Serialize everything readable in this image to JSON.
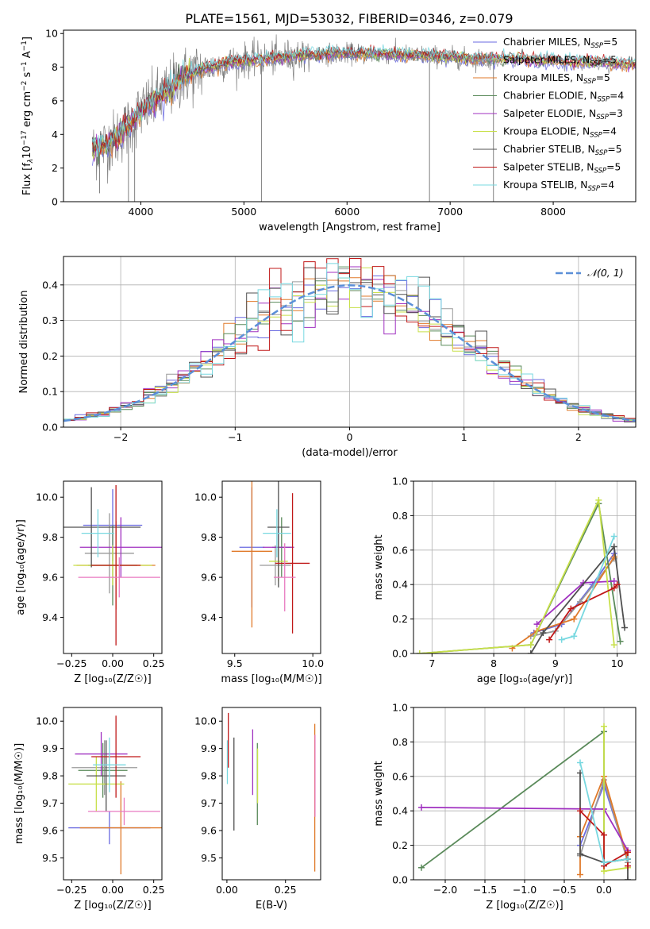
{
  "title": "PLATE=1561, MJD=53032, FIBERID=0346, z=0.079",
  "colors": {
    "chabrier_miles": "#6a6ae0",
    "salpeter_miles": "#9a9a9a",
    "kroupa_miles": "#e07a2a",
    "chabrier_elodie": "#5a8a5a",
    "salpeter_elodie": "#a030c0",
    "kroupa_elodie": "#c8e04a",
    "chabrier_stelib": "#505050",
    "salpeter_stelib": "#c01818",
    "kroupa_stelib": "#78d8e0",
    "normal": "#5b8fd8",
    "pink": "#e87ac0",
    "grid": "#b0b0b0"
  },
  "chart_data": [
    {
      "type": "line",
      "panel": "spectrum",
      "xlabel": "wavelength [Angstrom, rest frame]",
      "ylabel_parts": [
        "Flux [f",
        "λ",
        "10",
        "−17",
        " erg cm",
        "−2",
        " s",
        "−1",
        " A",
        "−1",
        "]"
      ],
      "xlim": [
        3250,
        8800
      ],
      "ylim": [
        0,
        10.2
      ],
      "xticks": [
        4000,
        5000,
        6000,
        7000,
        8000
      ],
      "yticks": [
        0,
        2,
        4,
        6,
        8,
        10
      ],
      "legend": [
        {
          "label": "Chabrier MILES, N",
          "n": "5",
          "color": "#6a6ae0"
        },
        {
          "label": "Salpeter MILES, N",
          "n": "5",
          "color": "#9a9a9a"
        },
        {
          "label": "Kroupa MILES, N",
          "n": "5",
          "color": "#e07a2a"
        },
        {
          "label": "Chabrier ELODIE, N",
          "n": "4",
          "color": "#5a8a5a"
        },
        {
          "label": "Salpeter ELODIE, N",
          "n": "3",
          "color": "#a030c0"
        },
        {
          "label": "Kroupa ELODIE, N",
          "n": "4",
          "color": "#c8e04a"
        },
        {
          "label": "Chabrier STELIB, N",
          "n": "5",
          "color": "#505050"
        },
        {
          "label": "Salpeter STELIB, N",
          "n": "5",
          "color": "#c01818"
        },
        {
          "label": "Kroupa STELIB, N",
          "n": "4",
          "color": "#78d8e0"
        }
      ],
      "legend_sub": "SSP",
      "continuum": {
        "x": [
          3530,
          3600,
          3700,
          3800,
          3900,
          4000,
          4100,
          4200,
          4300,
          4400,
          4500,
          4600,
          4700,
          4800,
          4900,
          5000,
          5200,
          5400,
          5600,
          5800,
          6000,
          6200,
          6400,
          6600,
          6800,
          7000,
          7200,
          7400,
          7600,
          7800,
          8000,
          8200,
          8400,
          8600,
          8800
        ],
        "y": [
          3.0,
          3.2,
          3.5,
          4.0,
          4.6,
          5.4,
          5.8,
          6.3,
          6.8,
          7.4,
          7.6,
          7.9,
          8.0,
          8.2,
          8.3,
          8.4,
          8.5,
          8.6,
          8.7,
          8.8,
          8.8,
          8.8,
          8.8,
          8.7,
          8.7,
          8.6,
          8.5,
          8.5,
          8.5,
          8.4,
          8.4,
          8.3,
          8.3,
          8.2,
          8.2
        ]
      },
      "data_range": [
        3530,
        7430
      ],
      "models_range": [
        3530,
        8800
      ]
    },
    {
      "type": "bar",
      "panel": "residual histogram",
      "xlabel": "(data-model)/error",
      "ylabel": "Normed distribution",
      "xlim": [
        -2.5,
        2.5
      ],
      "ylim": [
        0,
        0.48
      ],
      "xticks": [
        -2,
        -1,
        0,
        1,
        2
      ],
      "xticklabels": [
        "−2",
        "−1",
        "0",
        "1",
        "2"
      ],
      "yticks": [
        0.0,
        0.1,
        0.2,
        0.3,
        0.4
      ],
      "yticklabels": [
        "0.0",
        "0.1",
        "0.2",
        "0.3",
        "0.4"
      ],
      "legend_label": "𝒩(0, 1)",
      "bin_width": 0.1,
      "normal_curve": {
        "mean": 0,
        "sigma": 1
      }
    },
    {
      "type": "scatter",
      "panel": "age vs Z",
      "xlabel": "Z [log₁₀(Z/Z☉)]",
      "ylabel": "age  [log₁₀(age/yr)]",
      "xlim": [
        -0.3,
        0.3
      ],
      "ylim": [
        9.22,
        10.08
      ],
      "xticks": [
        -0.25,
        0.0,
        0.25
      ],
      "xticklabels": [
        "−0.25",
        "0.00",
        "0.25"
      ],
      "yticks": [
        9.4,
        9.6,
        9.8,
        10.0
      ],
      "yticklabels": [
        "9.4",
        "9.6",
        "9.8",
        "10.0"
      ],
      "points": [
        {
          "x": 0.0,
          "y": 9.86,
          "xerr": 0.18,
          "yerr": 0.18,
          "color": "#6a6ae0"
        },
        {
          "x": -0.02,
          "y": 9.72,
          "xerr": 0.15,
          "yerr": 0.2,
          "color": "#9a9a9a"
        },
        {
          "x": 0.02,
          "y": 9.66,
          "xerr": 0.24,
          "yerr": 0.22,
          "color": "#e07a2a"
        },
        {
          "x": 0.0,
          "y": 9.66,
          "xerr": 0.15,
          "yerr": 0.2,
          "color": "#5a8a5a"
        },
        {
          "x": 0.05,
          "y": 9.75,
          "xerr": 0.25,
          "yerr": 0.15,
          "color": "#a030c0"
        },
        {
          "x": 0.0,
          "y": 9.66,
          "xerr": 0.24,
          "yerr": 0.1,
          "color": "#c8e04a"
        },
        {
          "x": -0.13,
          "y": 9.85,
          "xerr": 0.3,
          "yerr": 0.2,
          "color": "#505050"
        },
        {
          "x": 0.02,
          "y": 9.66,
          "xerr": 0.15,
          "yerr": 0.4,
          "color": "#c01818"
        },
        {
          "x": -0.09,
          "y": 9.82,
          "xerr": 0.1,
          "yerr": 0.12,
          "color": "#78d8e0"
        },
        {
          "x": 0.04,
          "y": 9.6,
          "xerr": 0.25,
          "yerr": 0.1,
          "color": "#e87ac0"
        }
      ]
    },
    {
      "type": "scatter",
      "panel": "age vs mass",
      "xlabel": "mass [log₁₀(M/M☉)]",
      "ylabel": "",
      "xlim": [
        9.42,
        10.05
      ],
      "ylim": [
        9.22,
        10.08
      ],
      "xticks": [
        9.5,
        10.0
      ],
      "xticklabels": [
        "9.5",
        "10.0"
      ],
      "yticks": [
        9.4,
        9.6,
        9.8,
        10.0
      ],
      "yticklabels": [
        "9.4",
        "9.6",
        "9.8",
        "10.0"
      ],
      "points": [
        {
          "x": 9.61,
          "y": 9.75,
          "xerr": 0.08,
          "yerr": 0.3,
          "color": "#6a6ae0"
        },
        {
          "x": 9.76,
          "y": 9.66,
          "xerr": 0.1,
          "yerr": 0.1,
          "color": "#9a9a9a"
        },
        {
          "x": 9.61,
          "y": 9.73,
          "xerr": 0.13,
          "yerr": 0.38,
          "color": "#e07a2a"
        },
        {
          "x": 9.8,
          "y": 9.75,
          "xerr": 0.06,
          "yerr": 0.15,
          "color": "#5a8a5a"
        },
        {
          "x": 9.78,
          "y": 9.75,
          "xerr": 0.1,
          "yerr": 0.1,
          "color": "#a030c0"
        },
        {
          "x": 9.78,
          "y": 9.68,
          "xerr": 0.06,
          "yerr": 0.1,
          "color": "#c8e04a"
        },
        {
          "x": 9.78,
          "y": 9.85,
          "xerr": 0.07,
          "yerr": 0.3,
          "color": "#505050"
        },
        {
          "x": 9.87,
          "y": 9.67,
          "xerr": 0.11,
          "yerr": 0.35,
          "color": "#c01818"
        },
        {
          "x": 9.77,
          "y": 9.82,
          "xerr": 0.09,
          "yerr": 0.12,
          "color": "#78d8e0"
        },
        {
          "x": 9.82,
          "y": 9.6,
          "xerr": 0.07,
          "yerr": 0.17,
          "color": "#e87ac0"
        }
      ]
    },
    {
      "type": "line",
      "panel": "mass weight vs age",
      "xlabel": "age  [log₁₀(age/yr)]",
      "ylabel": "mass weight",
      "xlim": [
        6.7,
        10.3
      ],
      "ylim": [
        0,
        1.0
      ],
      "xticks": [
        7,
        8,
        9,
        10
      ],
      "yticks": [
        0.0,
        0.2,
        0.4,
        0.6,
        0.8,
        1.0
      ],
      "yticklabels": [
        "0.0",
        "0.2",
        "0.4",
        "0.6",
        "0.8",
        "1.0"
      ],
      "series": [
        {
          "color": "#6a6ae0",
          "x": [
            8.65,
            9.1,
            9.6,
            9.95
          ],
          "y": [
            0.12,
            0.17,
            0.4,
            0.58
          ]
        },
        {
          "color": "#9a9a9a",
          "x": [
            8.6,
            9.0,
            9.4,
            9.95
          ],
          "y": [
            0.1,
            0.13,
            0.3,
            0.55
          ]
        },
        {
          "color": "#e07a2a",
          "x": [
            8.3,
            8.7,
            9.3,
            9.95
          ],
          "y": [
            0.03,
            0.13,
            0.2,
            0.56
          ]
        },
        {
          "color": "#5a8a5a",
          "x": [
            6.8,
            8.6,
            9.7,
            10.05
          ],
          "y": [
            0.0,
            0.05,
            0.87,
            0.07
          ]
        },
        {
          "color": "#a030c0",
          "x": [
            8.7,
            9.45,
            9.95
          ],
          "y": [
            0.17,
            0.41,
            0.42
          ]
        },
        {
          "color": "#c8e04a",
          "x": [
            6.8,
            8.6,
            9.7,
            9.95
          ],
          "y": [
            0.0,
            0.05,
            0.89,
            0.05
          ]
        },
        {
          "color": "#505050",
          "x": [
            8.6,
            8.8,
            9.95,
            10.12
          ],
          "y": [
            0.0,
            0.12,
            0.62,
            0.15
          ]
        },
        {
          "color": "#c01818",
          "x": [
            8.9,
            9.25,
            9.95,
            10.0
          ],
          "y": [
            0.08,
            0.26,
            0.38,
            0.4
          ]
        },
        {
          "color": "#78d8e0",
          "x": [
            9.1,
            9.3,
            9.95
          ],
          "y": [
            0.08,
            0.1,
            0.68
          ]
        }
      ]
    },
    {
      "type": "scatter",
      "panel": "mass vs Z",
      "xlabel": "Z [log₁₀(Z/Z☉)]",
      "ylabel": "mass [log₁₀(M/M☉)]",
      "xlim": [
        -0.3,
        0.3
      ],
      "ylim": [
        9.42,
        10.05
      ],
      "xticks": [
        -0.25,
        0.0,
        0.25
      ],
      "xticklabels": [
        "−0.25",
        "0.00",
        "0.25"
      ],
      "yticks": [
        9.5,
        9.6,
        9.7,
        9.8,
        9.9,
        10.0
      ],
      "yticklabels": [
        "9.5",
        "9.6",
        "9.7",
        "9.8",
        "9.9",
        "10.0"
      ],
      "points": [
        {
          "x": -0.02,
          "y": 9.61,
          "xerr": 0.25,
          "yerr": 0.06,
          "color": "#6a6ae0"
        },
        {
          "x": -0.05,
          "y": 9.83,
          "xerr": 0.2,
          "yerr": 0.1,
          "color": "#9a9a9a"
        },
        {
          "x": 0.05,
          "y": 9.61,
          "xerr": 0.25,
          "yerr": 0.17,
          "color": "#e07a2a"
        },
        {
          "x": -0.06,
          "y": 9.82,
          "xerr": 0.15,
          "yerr": 0.1,
          "color": "#5a8a5a"
        },
        {
          "x": -0.07,
          "y": 9.88,
          "xerr": 0.16,
          "yerr": 0.08,
          "color": "#a030c0"
        },
        {
          "x": -0.1,
          "y": 9.77,
          "xerr": 0.17,
          "yerr": 0.1,
          "color": "#c8e04a"
        },
        {
          "x": -0.04,
          "y": 9.8,
          "xerr": 0.12,
          "yerr": 0.13,
          "color": "#505050"
        },
        {
          "x": 0.02,
          "y": 9.87,
          "xerr": 0.15,
          "yerr": 0.15,
          "color": "#c01818"
        },
        {
          "x": -0.02,
          "y": 9.84,
          "xerr": 0.1,
          "yerr": 0.1,
          "color": "#78d8e0"
        },
        {
          "x": 0.07,
          "y": 9.67,
          "xerr": 0.22,
          "yerr": 0.05,
          "color": "#e87ac0"
        }
      ]
    },
    {
      "type": "scatter",
      "panel": "mass vs E(B-V)",
      "xlabel": "E(B-V)",
      "ylabel": "",
      "xlim": [
        -0.02,
        0.4
      ],
      "ylim": [
        9.42,
        10.05
      ],
      "xticks": [
        0.0,
        0.25
      ],
      "xticklabels": [
        "0.00",
        "0.25"
      ],
      "yticks": [
        9.5,
        9.6,
        9.7,
        9.8,
        9.9,
        10.0
      ],
      "yticklabels": [
        "9.5",
        "9.6",
        "9.7",
        "9.8",
        "9.9",
        "10.0"
      ],
      "points": [
        {
          "x": 0.002,
          "y": 9.85,
          "yerr": 0.08,
          "color": "#78d8e0"
        },
        {
          "x": 0.006,
          "y": 9.93,
          "yerr": 0.1,
          "color": "#c01818"
        },
        {
          "x": 0.03,
          "y": 9.77,
          "yerr": 0.17,
          "color": "#505050"
        },
        {
          "x": 0.11,
          "y": 9.85,
          "yerr": 0.12,
          "color": "#a030c0"
        },
        {
          "x": 0.13,
          "y": 9.77,
          "yerr": 0.15,
          "color": "#5a8a5a"
        },
        {
          "x": 0.131,
          "y": 9.8,
          "yerr": 0.1,
          "color": "#c8e04a"
        },
        {
          "x": 0.375,
          "y": 9.72,
          "yerr": 0.27,
          "color": "#e07a2a"
        },
        {
          "x": 0.376,
          "y": 9.8,
          "yerr": 0.15,
          "color": "#e87ac0"
        }
      ]
    },
    {
      "type": "line",
      "panel": "mass weight vs Z",
      "xlabel": "Z [log₁₀(Z/Z☉)]",
      "ylabel": "mass weight",
      "xlim": [
        -2.4,
        0.4
      ],
      "ylim": [
        0,
        1.0
      ],
      "xticks": [
        -2.0,
        -1.5,
        -1.0,
        -0.5,
        0.0
      ],
      "xticklabels": [
        "−2.0",
        "−1.5",
        "−1.0",
        "−0.5",
        "0.0"
      ],
      "yticks": [
        0.0,
        0.2,
        0.4,
        0.6,
        0.8,
        1.0
      ],
      "yticklabels": [
        "0.0",
        "0.2",
        "0.4",
        "0.6",
        "0.8",
        "1.0"
      ],
      "series": [
        {
          "color": "#6a6ae0",
          "x": [
            -0.3,
            0.0,
            0.3
          ],
          "y": [
            0.2,
            0.55,
            0.12
          ]
        },
        {
          "color": "#9a9a9a",
          "x": [
            -0.3,
            0.0,
            0.3
          ],
          "y": [
            0.14,
            0.58,
            0.1
          ]
        },
        {
          "color": "#e07a2a",
          "x": [
            -0.3,
            -0.3,
            0.0,
            0.3
          ],
          "y": [
            0.03,
            0.25,
            0.6,
            0.12
          ]
        },
        {
          "color": "#5a8a5a",
          "x": [
            -2.3,
            0.0,
            0.0,
            0.3
          ],
          "y": [
            0.07,
            0.86,
            0.1,
            0.12
          ]
        },
        {
          "color": "#a030c0",
          "x": [
            -2.3,
            0.0,
            0.3
          ],
          "y": [
            0.42,
            0.41,
            0.17
          ]
        },
        {
          "color": "#c8e04a",
          "x": [
            0.0,
            0.0,
            0.3
          ],
          "y": [
            0.89,
            0.05,
            0.07
          ]
        },
        {
          "color": "#505050",
          "x": [
            -0.3,
            -0.3,
            0.0,
            0.3,
            0.3
          ],
          "y": [
            0.62,
            0.15,
            0.1,
            0.12,
            0.0
          ]
        },
        {
          "color": "#c01818",
          "x": [
            -0.3,
            0.0,
            0.0,
            0.3,
            0.3
          ],
          "y": [
            0.4,
            0.26,
            0.08,
            0.16,
            0.08
          ]
        },
        {
          "color": "#78d8e0",
          "x": [
            -0.3,
            0.0,
            0.3
          ],
          "y": [
            0.68,
            0.1,
            0.12
          ]
        }
      ]
    }
  ]
}
